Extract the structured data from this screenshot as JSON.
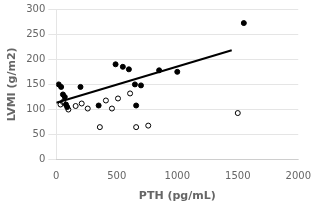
{
  "chart_data": {
    "type": "scatter",
    "xlabel": "PTH (pg/mL)",
    "ylabel": "LVMI (g/m2)",
    "xlim": [
      0,
      2000
    ],
    "ylim": [
      0,
      300
    ],
    "xticks": [
      0,
      500,
      1000,
      1500,
      2000
    ],
    "yticks": [
      0,
      50,
      100,
      150,
      200,
      250,
      300
    ],
    "grid": "y",
    "series": [
      {
        "type": "line",
        "line_style": "solid",
        "color": "#000000",
        "x": [
          0,
          1450
        ],
        "values": [
          113.5,
          217.9
        ]
      },
      {
        "type": "scatter",
        "marker": "circle",
        "color": "#000000",
        "x": [
          20,
          40,
          55,
          70,
          80,
          90,
          200,
          350,
          490,
          550,
          600,
          650,
          660,
          700,
          850,
          1000,
          1550
        ],
        "values": [
          150,
          145,
          130,
          125,
          110,
          105,
          145,
          108,
          190,
          185,
          180,
          150,
          108,
          148,
          178,
          175,
          272
        ]
      },
      {
        "type": "scatter",
        "marker": "open_circle",
        "color": "#000000",
        "x": [
          35,
          55,
          100,
          160,
          210,
          260,
          360,
          410,
          460,
          510,
          610,
          660,
          760,
          1500
        ],
        "values": [
          110,
          115,
          100,
          107,
          112,
          102,
          65,
          118,
          102,
          122,
          132,
          65,
          68,
          93
        ]
      }
    ]
  }
}
